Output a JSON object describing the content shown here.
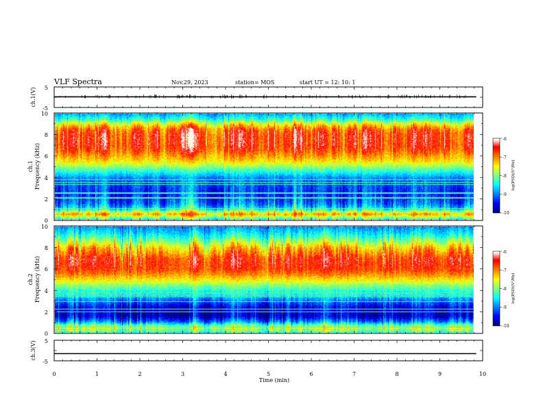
{
  "header": {
    "title": "VLF Spectra",
    "date": "Nov.29, 2023",
    "station": "station= MOS",
    "start": "start  UT =   12: 10: 1"
  },
  "chart_data": [
    {
      "type": "line",
      "panel": "ch1-waveform",
      "ylabel": "ch.1(V)",
      "ylim": [
        -5,
        5
      ],
      "yticks": [
        "5",
        "-5"
      ],
      "xlim": [
        0,
        10
      ],
      "series": [
        {
          "x": [
            0,
            9.85
          ],
          "values": [
            0.2,
            0.2
          ]
        }
      ]
    },
    {
      "type": "heatmap",
      "panel": "ch1-spectrogram",
      "ylabel": "ch.1\nFrequency (kHz)",
      "ylim": [
        0,
        10
      ],
      "yticks": [
        "0",
        "2",
        "4",
        "6",
        "8",
        "10"
      ],
      "xlim": [
        0,
        10
      ],
      "colorbar": {
        "label": "log(PSD)(V²/Hz)",
        "range": [
          -10,
          -6
        ],
        "ticks": [
          "-6",
          "-7",
          "-8",
          "-9",
          "-10"
        ]
      },
      "profile": {
        "freq_khz": [
          0,
          0.5,
          1,
          1.5,
          2,
          2.5,
          3,
          3.5,
          4,
          4.5,
          5,
          5.5,
          6,
          6.5,
          7,
          7.5,
          8,
          8.5,
          9,
          9.5,
          10
        ],
        "log_psd": [
          -8.3,
          -7.1,
          -8.5,
          -9.0,
          -9.2,
          -9.3,
          -9.2,
          -9.1,
          -8.9,
          -8.4,
          -7.9,
          -7.4,
          -7.1,
          -6.8,
          -6.6,
          -6.6,
          -6.6,
          -6.8,
          -7.4,
          -8.3,
          -8.8
        ]
      }
    },
    {
      "type": "heatmap",
      "panel": "ch2-spectrogram",
      "ylabel": "ch.2\nFrequency (kHz)",
      "ylim": [
        0,
        10
      ],
      "yticks": [
        "0",
        "2",
        "4",
        "6",
        "8",
        "10"
      ],
      "xlim": [
        0,
        10
      ],
      "colorbar": {
        "label": "log(PSD)(V²/Hz)",
        "range": [
          -10,
          -6
        ],
        "ticks": [
          "-6",
          "-7",
          "-8",
          "-9",
          "-10"
        ]
      },
      "profile": {
        "freq_khz": [
          0,
          0.5,
          1,
          1.5,
          2,
          2.5,
          3,
          3.5,
          4,
          4.5,
          5,
          5.5,
          6,
          6.5,
          7,
          7.5,
          8,
          8.5,
          9,
          9.5,
          10
        ],
        "log_psd": [
          -8.2,
          -7.6,
          -8.9,
          -9.6,
          -9.7,
          -9.4,
          -9.0,
          -8.6,
          -8.3,
          -7.9,
          -7.4,
          -7.0,
          -6.7,
          -6.6,
          -6.6,
          -6.9,
          -7.2,
          -7.7,
          -8.2,
          -8.6,
          -8.9
        ]
      }
    },
    {
      "type": "line",
      "panel": "ch3-waveform",
      "ylabel": "ch.3(V)",
      "ylim": [
        -5,
        5
      ],
      "yticks": [
        "5",
        "-5"
      ],
      "xlim": [
        0,
        10
      ],
      "xlabel": "Time (min)",
      "xticks": [
        "0",
        "1",
        "2",
        "3",
        "4",
        "5",
        "6",
        "7",
        "8",
        "9",
        "10"
      ],
      "series": [
        {
          "x": [
            0,
            9.85
          ],
          "values": [
            -1.5,
            -1.5
          ]
        }
      ]
    }
  ]
}
